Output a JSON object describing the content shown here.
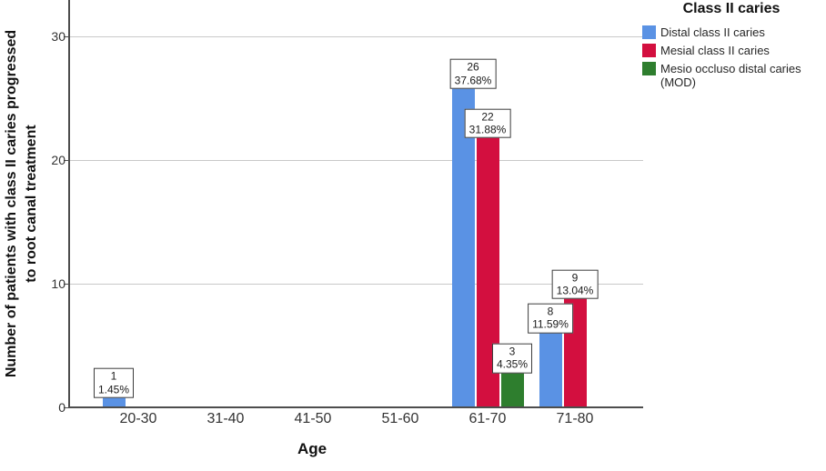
{
  "y_axis": {
    "title_lines": [
      "Number of patients with class II caries progressed",
      "to root canal treatment"
    ],
    "tick_labels": [
      "0",
      "10",
      "20",
      "30"
    ]
  },
  "x_axis": {
    "title": "Age",
    "tick_labels": [
      "20-30",
      "31-40",
      "41-50",
      "51-60",
      "61-70",
      "71-80"
    ]
  },
  "legend": {
    "title": "Class II caries",
    "entries": [
      {
        "label": "Distal class II caries",
        "color": "#5A92E4"
      },
      {
        "label": "Mesial class II caries",
        "color": "#D30F3F"
      },
      {
        "label": "Mesio occluso distal caries (MOD)",
        "color": "#2E7E2E"
      }
    ]
  },
  "chart_data": {
    "type": "bar",
    "title": "",
    "xlabel": "Age",
    "ylabel": "Number of patients with class II caries progressed to root canal treatment",
    "categories": [
      "20-30",
      "31-40",
      "41-50",
      "51-60",
      "61-70",
      "71-80"
    ],
    "series": [
      {
        "name": "Distal class II caries",
        "color": "#5A92E4",
        "values": [
          1,
          0,
          0,
          0,
          26,
          8
        ],
        "value_labels": [
          {
            "count": "1",
            "pct": "1.45%"
          },
          null,
          null,
          null,
          {
            "count": "26",
            "pct": "37.68%",
            "dx": 11
          },
          {
            "count": "8",
            "pct": "11.59%",
            "dy": 24
          }
        ]
      },
      {
        "name": "Mesial class II caries",
        "color": "#D30F3F",
        "values": [
          0,
          0,
          0,
          0,
          22,
          9
        ],
        "value_labels": [
          null,
          null,
          null,
          null,
          {
            "count": "22",
            "pct": "31.88%"
          },
          {
            "count": "9",
            "pct": "13.04%"
          }
        ]
      },
      {
        "name": "Mesio occluso distal caries (MOD)",
        "color": "#2E7E2E",
        "values": [
          0,
          0,
          0,
          0,
          3,
          0
        ],
        "value_labels": [
          null,
          null,
          null,
          null,
          {
            "count": "3",
            "pct": "4.35%"
          },
          null
        ]
      }
    ],
    "ylim": [
      0,
      33
    ],
    "yticks": [
      0,
      10,
      20,
      30
    ],
    "grid": true,
    "legend_position": "top-right"
  }
}
